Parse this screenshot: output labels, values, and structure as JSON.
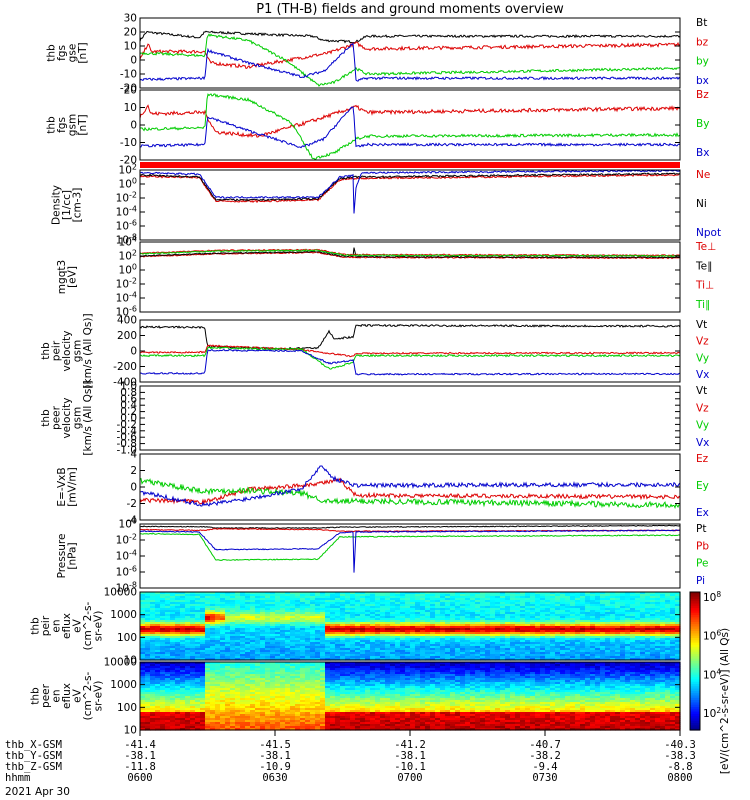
{
  "title": "P1 (TH-B) fields and ground moments overview",
  "date": "2021 Apr 30",
  "colors": {
    "black": "#000000",
    "red": "#dd0000",
    "green": "#00cc00",
    "blue": "#0000cc",
    "brightred": "#ff0000"
  },
  "chart_data": [
    {
      "type": "line",
      "id": "p1",
      "ylabel": [
        "thb",
        "fgs",
        "gse",
        "[nT]"
      ],
      "ylim": [
        -20,
        30
      ],
      "yticks": [
        "30",
        "20",
        "10",
        "0",
        "-10",
        "-20"
      ],
      "legend": [
        {
          "name": "Bt",
          "color": "black"
        },
        {
          "name": "bz",
          "color": "red"
        },
        {
          "name": "by",
          "color": "green"
        },
        {
          "name": "bx",
          "color": "blue"
        }
      ]
    },
    {
      "type": "line",
      "id": "p2",
      "ylabel": [
        "thb",
        "fgs",
        "gsm",
        "[nT]"
      ],
      "ylim": [
        -25,
        25
      ],
      "yticks": [
        "20",
        "10",
        "0",
        "-10",
        "-20"
      ],
      "legend": [
        {
          "name": "Bz",
          "color": "red"
        },
        {
          "name": "By",
          "color": "green"
        },
        {
          "name": "Bx",
          "color": "blue"
        }
      ]
    },
    {
      "type": "line",
      "id": "p4",
      "ylabel": [
        "Density",
        "[1/cc]",
        "[cm-3]"
      ],
      "log": true,
      "yticks": [
        "10^2",
        "10^0",
        "10^-2",
        "10^-4",
        "10^-6",
        "10^-8"
      ],
      "legend": [
        {
          "name": "Ne",
          "color": "red"
        },
        {
          "name": "Ni",
          "color": "black"
        },
        {
          "name": "Npot",
          "color": "blue"
        }
      ]
    },
    {
      "type": "line",
      "id": "p5",
      "ylabel": [
        "mgqt3",
        "[eV]"
      ],
      "log": true,
      "yticks": [
        "10^4",
        "10^2",
        "10^0",
        "10^-2",
        "10^-4",
        "10^-6"
      ],
      "legend": [
        {
          "name": "Te⊥",
          "color": "red"
        },
        {
          "name": "Te∥",
          "color": "black"
        },
        {
          "name": "Ti⊥",
          "color": "red"
        },
        {
          "name": "Ti∥",
          "color": "green"
        }
      ]
    },
    {
      "type": "line",
      "id": "p6",
      "ylabel": [
        "thb",
        "peir",
        "velocity",
        "gsm",
        "[km/s (All Qs)]"
      ],
      "ylim": [
        -400,
        400
      ],
      "yticks": [
        "400",
        "200",
        "0",
        "-200",
        "-400"
      ],
      "legend": [
        {
          "name": "Vt",
          "color": "black"
        },
        {
          "name": "Vz",
          "color": "red"
        },
        {
          "name": "Vy",
          "color": "green"
        },
        {
          "name": "Vx",
          "color": "blue"
        }
      ]
    },
    {
      "type": "line",
      "id": "p7",
      "ylabel": [
        "thb",
        "peer",
        "velocity",
        "gsm",
        "[km/s (All Qs)]"
      ],
      "ylim": [
        -1,
        1
      ],
      "yticks": [
        "1.0",
        "0.8",
        "0.6",
        "0.4",
        "0.2",
        "0.0",
        "-0.2",
        "-0.4",
        "-0.6",
        "-0.8",
        "-1.0"
      ],
      "legend": [
        {
          "name": "Vt",
          "color": "black"
        },
        {
          "name": "Vz",
          "color": "red"
        },
        {
          "name": "Vy",
          "color": "green"
        },
        {
          "name": "Vx",
          "color": "blue"
        }
      ]
    },
    {
      "type": "line",
      "id": "p8",
      "ylabel": [
        "E=-VxB",
        "[mV/m]"
      ],
      "ylim": [
        -4,
        4
      ],
      "yticks": [
        "4",
        "2",
        "0",
        "-2",
        "-4"
      ],
      "legend": [
        {
          "name": "Ez",
          "color": "red"
        },
        {
          "name": "Ey",
          "color": "green"
        },
        {
          "name": "Ex",
          "color": "blue"
        }
      ]
    },
    {
      "type": "line",
      "id": "p9",
      "ylabel": [
        "Pressure",
        "[nPa]"
      ],
      "log": true,
      "yticks": [
        "10^0",
        "10^-2",
        "10^-4",
        "10^-6",
        "10^-8"
      ],
      "legend": [
        {
          "name": "Pt",
          "color": "black"
        },
        {
          "name": "Pb",
          "color": "red"
        },
        {
          "name": "Pe",
          "color": "green"
        },
        {
          "name": "Pi",
          "color": "blue"
        }
      ]
    },
    {
      "type": "heatmap",
      "id": "p10",
      "ylabel": [
        "thb",
        "peir",
        "en",
        "eflux",
        "eV",
        "(cm^2-s-",
        "sr-eV)"
      ],
      "log": true,
      "yticks": [
        "10000",
        "1000",
        "100",
        "10"
      ]
    },
    {
      "type": "heatmap",
      "id": "p11",
      "ylabel": [
        "thb",
        "peer",
        "en",
        "eflux",
        "eV",
        "(cm^2-s-",
        "sr-eV)"
      ],
      "log": true,
      "yticks": [
        "10000",
        "1000",
        "100",
        "10"
      ],
      "colorbar": {
        "label": "[eV/(cm^2-s-sr-eV)] (All Qs)",
        "ticks": [
          "10^8",
          "10^6",
          "10^4",
          "10^2"
        ]
      }
    }
  ],
  "xaxis": {
    "row_labels": [
      "thb_X-GSM",
      "thb_Y-GSM",
      "thb_Z-GSM",
      "hhmm"
    ],
    "columns": [
      {
        "x": [
          "-41.4",
          "-38.1",
          "-11.8",
          "0600"
        ]
      },
      {
        "x": [
          "-41.5",
          "-38.1",
          "-10.9",
          "0630"
        ]
      },
      {
        "x": [
          "-41.2",
          "-38.1",
          "-10.1",
          "0700"
        ]
      },
      {
        "x": [
          "-40.7",
          "-38.2",
          "-9.4",
          "0730"
        ]
      },
      {
        "x": [
          "-40.3",
          "-38.3",
          "-8.8",
          "0800"
        ]
      }
    ]
  }
}
